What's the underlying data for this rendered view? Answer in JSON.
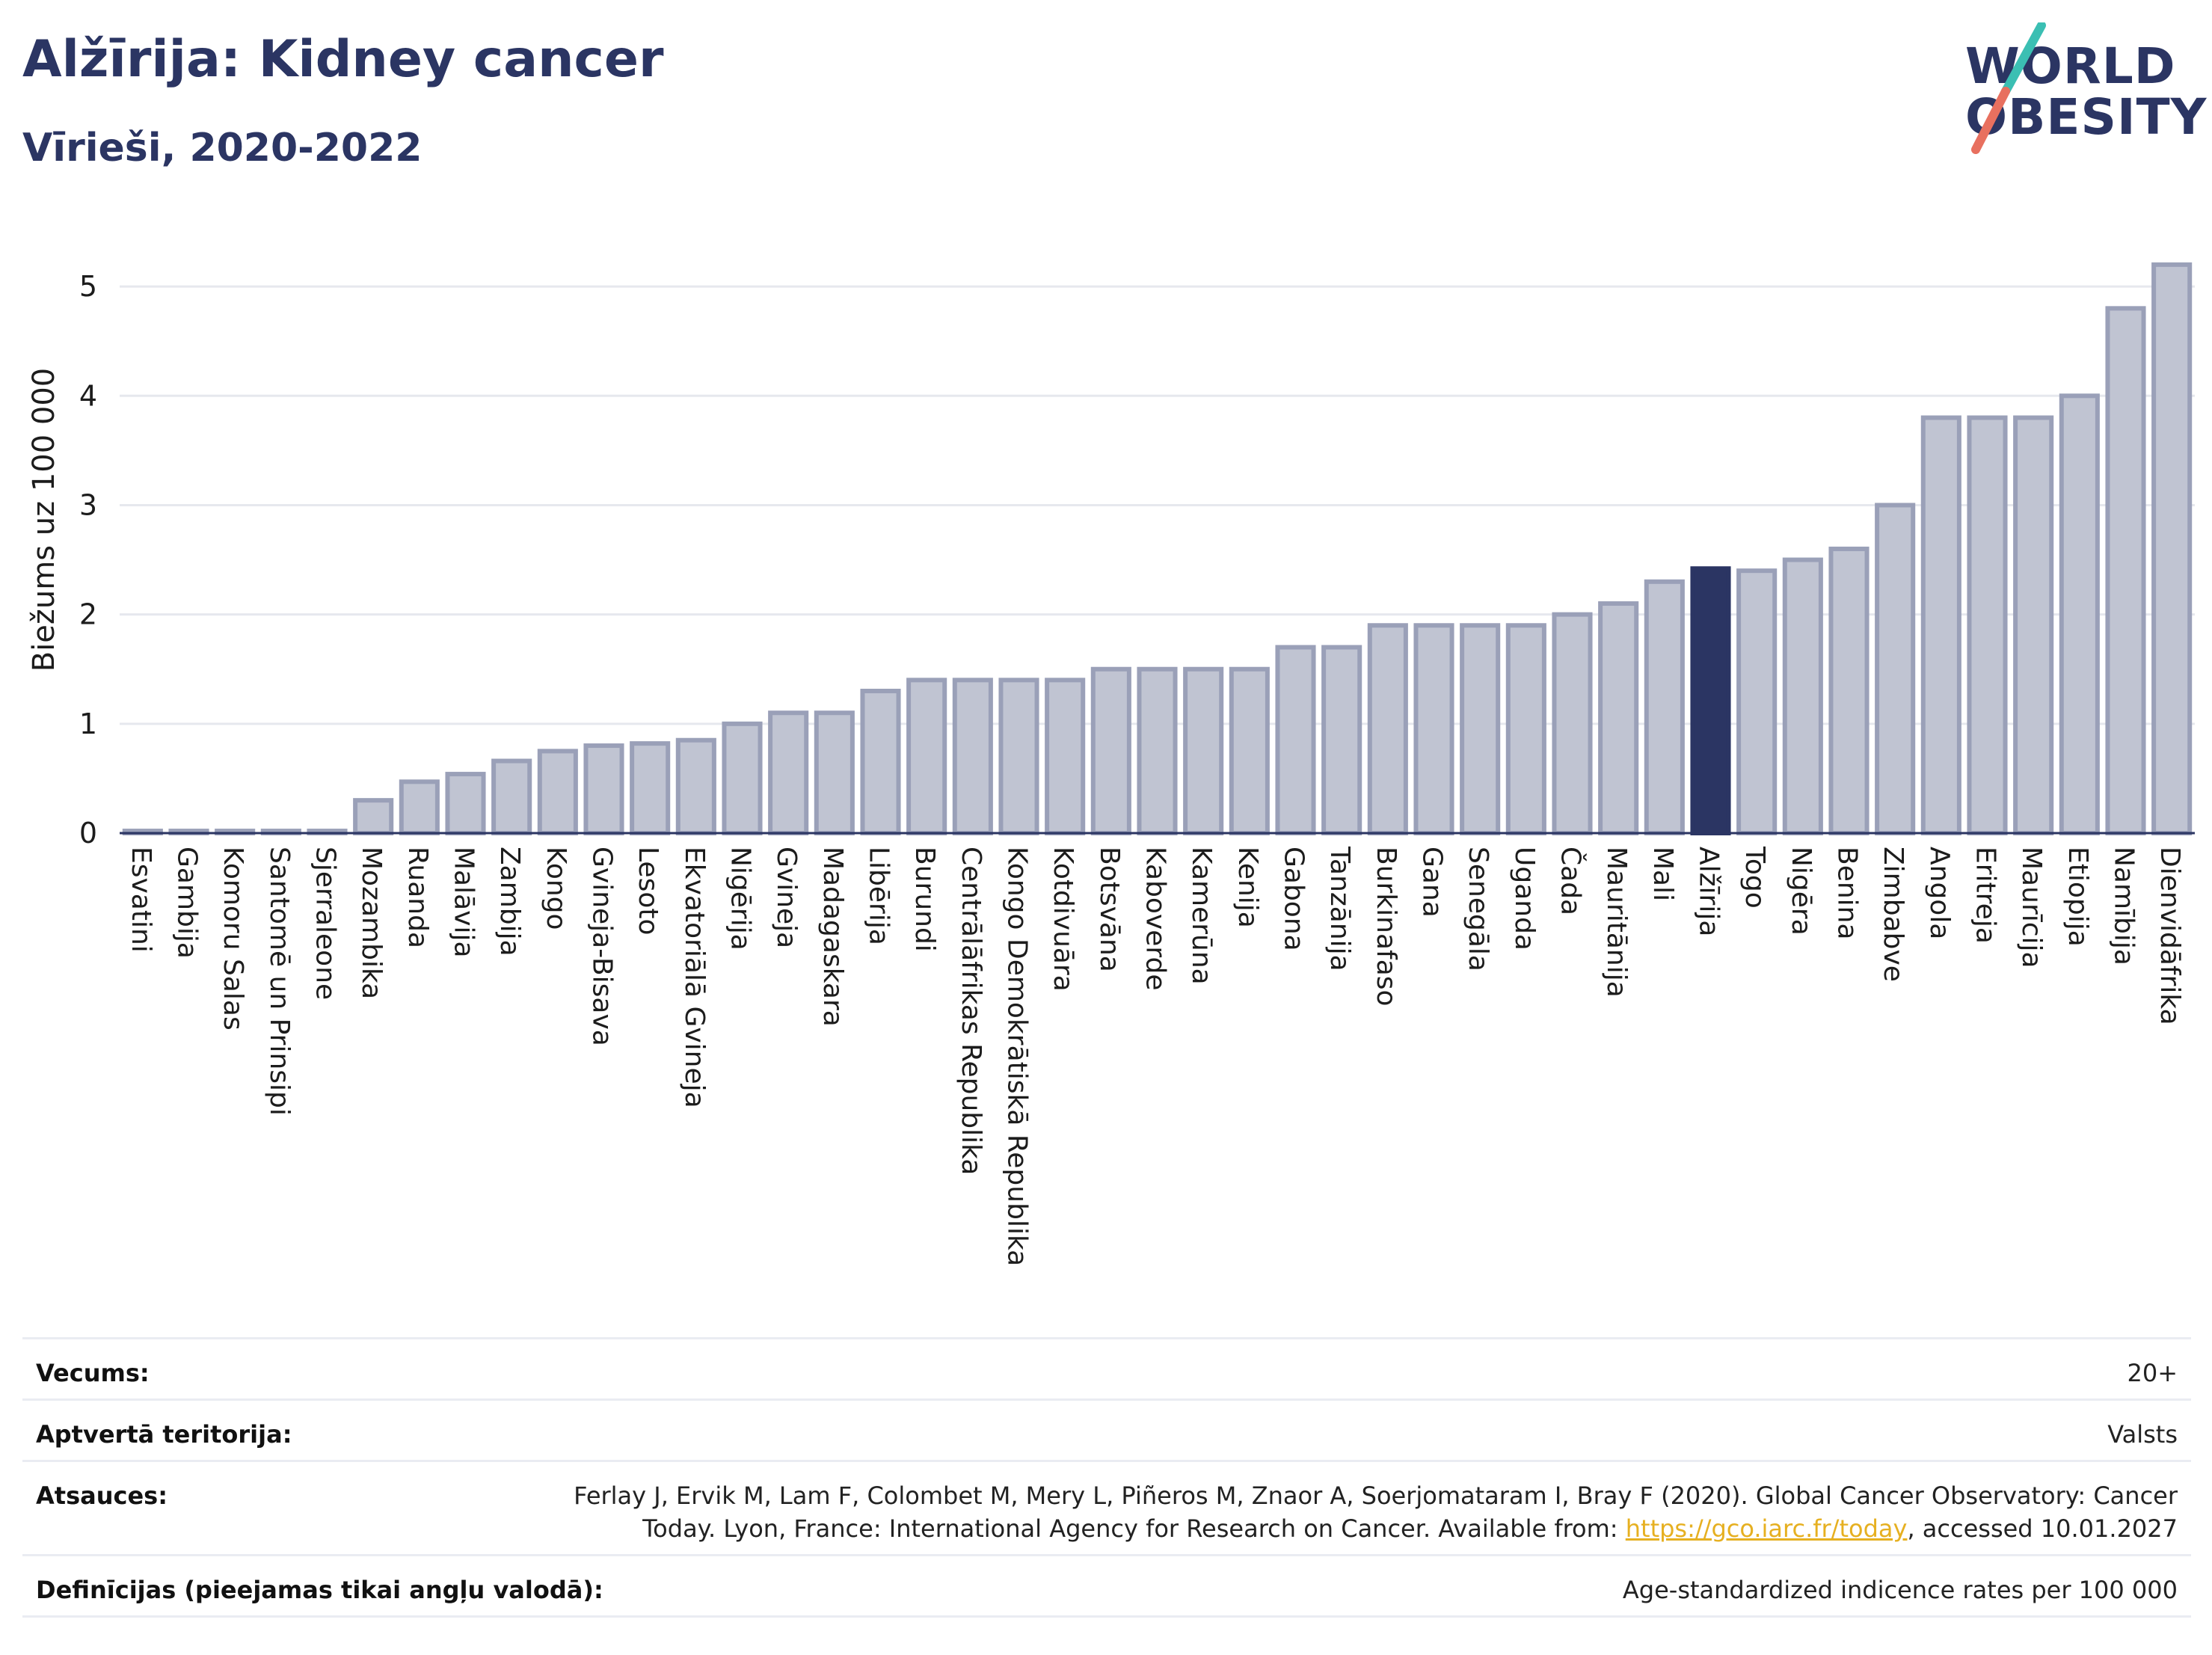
{
  "header": {
    "title": "Alžīrija: Kidney cancer",
    "subtitle": "Vīrieši, 2020-2022"
  },
  "logo": {
    "line1": "WORLD",
    "line2": "OBESITY",
    "colors": {
      "text": "#2b3563",
      "slash_top": "#3bbfb3",
      "slash_bottom": "#e8705f"
    }
  },
  "chart_data": {
    "type": "bar",
    "ylabel": "Biežums uz 100 000",
    "ylim": [
      0,
      5.5
    ],
    "yticks": [
      0,
      1,
      2,
      3,
      4,
      5
    ],
    "grid": true,
    "highlight": "Alžīrija",
    "colors": {
      "bar": "#c0c4d2",
      "bar_edge": "#9aa0b8",
      "highlight": "#2b3563"
    },
    "categories": [
      "Esvatini",
      "Gambija",
      "Komoru Salas",
      "Santomē un Prinsipi",
      "Sjerraleone",
      "Mozambika",
      "Ruanda",
      "Malāvija",
      "Zambija",
      "Kongo",
      "Gvineja-Bisava",
      "Lesoto",
      "Ekvatoriālā Gvineja",
      "Nigērija",
      "Gvineja",
      "Madagaskara",
      "Libērija",
      "Burundi",
      "Centrālāfrikas Republika",
      "Kongo Demokrātiskā Republika",
      "Kotdivuāra",
      "Botsvāna",
      "Kaboverde",
      "Kamerūna",
      "Kenija",
      "Gabona",
      "Tanzānija",
      "Burkinafaso",
      "Gana",
      "Senegāla",
      "Uganda",
      "Čada",
      "Mauritānija",
      "Mali",
      "Alžīrija",
      "Togo",
      "Nigēra",
      "Benina",
      "Zimbabve",
      "Angola",
      "Eritreja",
      "Maurīcija",
      "Etiopija",
      "Namībija",
      "Dienvidāfrika"
    ],
    "values": [
      0.02,
      0.02,
      0.02,
      0.02,
      0.02,
      0.3,
      0.47,
      0.54,
      0.66,
      0.75,
      0.8,
      0.82,
      0.85,
      1.0,
      1.1,
      1.1,
      1.3,
      1.4,
      1.4,
      1.4,
      1.4,
      1.5,
      1.5,
      1.5,
      1.5,
      1.7,
      1.7,
      1.9,
      1.9,
      1.9,
      1.9,
      2.0,
      2.1,
      2.3,
      2.42,
      2.4,
      2.5,
      2.6,
      3.0,
      3.8,
      3.8,
      3.8,
      4.0,
      4.8,
      5.2
    ]
  },
  "info": {
    "age_label": "Vecums:",
    "age_value": "20+",
    "territory_label": "Aptvertā teritorija:",
    "territory_value": "Valsts",
    "sources_label": "Atsauces:",
    "sources_line1": "Ferlay J, Ervik M, Lam F, Colombet M, Mery L, Piñeros M, Znaor A, Soerjomataram I, Bray F (2020). Global Cancer Observatory: Cancer",
    "sources_line2_pre": "Today. Lyon, France: International Agency for Research on Cancer. Available from: ",
    "sources_link": "https://gco.iarc.fr/today",
    "sources_line2_post": ", accessed 10.01.2027",
    "definitions_label": "Definīcijas (pieejamas tikai angļu valodā):",
    "definitions_value": "Age-standardized indicence rates per 100 000"
  }
}
